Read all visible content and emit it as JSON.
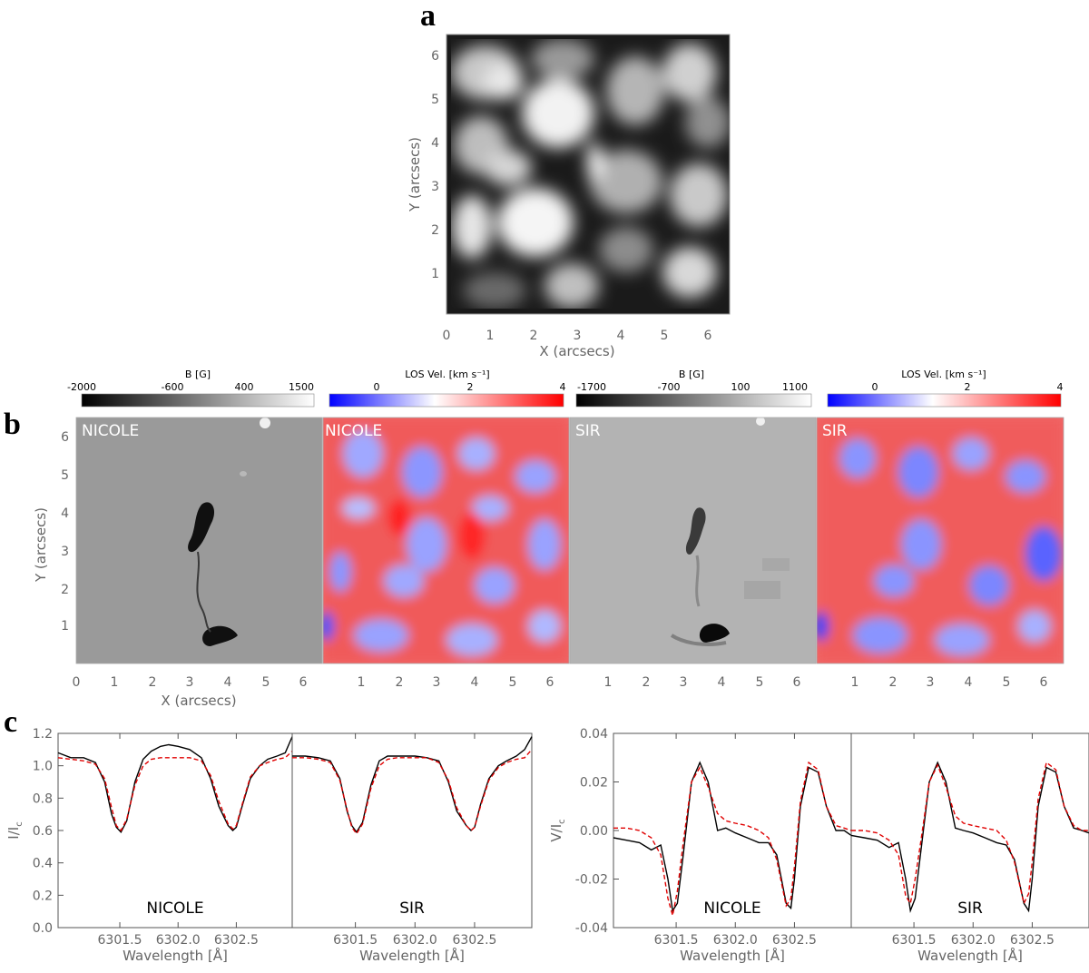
{
  "panel_labels": {
    "a": "a",
    "b": "b",
    "c": "c"
  },
  "panel_a": {
    "xlabel": "X (arcsecs)",
    "ylabel": "Y (arcsecs)",
    "xticks": [
      "0",
      "1",
      "2",
      "3",
      "4",
      "5",
      "6"
    ],
    "yticks": [
      "1",
      "2",
      "3",
      "4",
      "5",
      "6"
    ],
    "image": "continuum intensity granulation map"
  },
  "panel_b": {
    "xlabel": "X (arcsecs)",
    "ylabel": "Y (arcsecs)",
    "xticks_first": [
      "0",
      "1",
      "2",
      "3",
      "4",
      "5",
      "6"
    ],
    "xticks_other": [
      "1",
      "2",
      "3",
      "4",
      "5",
      "6"
    ],
    "yticks": [
      "1",
      "2",
      "3",
      "4",
      "5",
      "6"
    ],
    "maps": [
      {
        "tag": "NICOLE",
        "kind": "B",
        "colorbar": {
          "title": "B [G]",
          "ticks": [
            "-2000",
            "-600",
            "400",
            "1500"
          ],
          "range": [
            -2000,
            1500
          ],
          "colors": [
            "#000000",
            "#ffffff"
          ]
        }
      },
      {
        "tag": "NICOLE",
        "kind": "V",
        "colorbar": {
          "title": "LOS Vel. [km s⁻¹]",
          "ticks": [
            "0",
            "2",
            "4"
          ],
          "range": [
            -0.5,
            4
          ],
          "colors": [
            "#0000ff",
            "#ffffff",
            "#ff0000"
          ]
        }
      },
      {
        "tag": "SIR",
        "kind": "B",
        "colorbar": {
          "title": "B [G]",
          "ticks": [
            "-1700",
            "-700",
            "100",
            "1100"
          ],
          "range": [
            -1700,
            1100
          ],
          "colors": [
            "#000000",
            "#ffffff"
          ]
        }
      },
      {
        "tag": "SIR",
        "kind": "V",
        "colorbar": {
          "title": "LOS Vel. [km s⁻¹]",
          "ticks": [
            "0",
            "2",
            "4"
          ],
          "range": [
            -0.5,
            4
          ],
          "colors": [
            "#0000ff",
            "#ffffff",
            "#ff0000"
          ]
        }
      }
    ]
  },
  "chart_data": [
    {
      "type": "line",
      "title": "",
      "label": "NICOLE",
      "xlabel": "Wavelength [Å]",
      "ylabel": "I/I",
      "ylabel_sub": "c",
      "xticks": [
        6301.5,
        6302.0,
        6302.5
      ],
      "xlim": [
        6300.97,
        6302.98
      ],
      "ylim": [
        0.0,
        1.2
      ],
      "yticks": [
        0.0,
        0.2,
        0.4,
        0.6,
        0.8,
        1.0,
        1.2
      ],
      "x": [
        6300.97,
        6301.08,
        6301.19,
        6301.29,
        6301.37,
        6301.43,
        6301.47,
        6301.51,
        6301.56,
        6301.63,
        6301.7,
        6301.77,
        6301.85,
        6301.92,
        6302.0,
        6302.1,
        6302.2,
        6302.28,
        6302.35,
        6302.43,
        6302.47,
        6302.5,
        6302.55,
        6302.62,
        6302.7,
        6302.77,
        6302.85,
        6302.92,
        6302.98
      ],
      "series": [
        {
          "name": "",
          "color": "#000000",
          "dash": false,
          "values": [
            1.08,
            1.05,
            1.05,
            1.02,
            0.9,
            0.7,
            0.62,
            0.59,
            0.66,
            0.9,
            1.04,
            1.09,
            1.12,
            1.13,
            1.12,
            1.1,
            1.05,
            0.92,
            0.75,
            0.63,
            0.6,
            0.62,
            0.75,
            0.92,
            1.0,
            1.04,
            1.06,
            1.08,
            1.18
          ]
        },
        {
          "name": "",
          "color": "#e00000",
          "dash": true,
          "values": [
            1.05,
            1.04,
            1.03,
            1.01,
            0.92,
            0.74,
            0.63,
            0.6,
            0.67,
            0.88,
            1.0,
            1.04,
            1.05,
            1.05,
            1.05,
            1.05,
            1.03,
            0.94,
            0.78,
            0.64,
            0.61,
            0.63,
            0.76,
            0.93,
            1.0,
            1.02,
            1.04,
            1.05,
            1.09
          ]
        }
      ]
    },
    {
      "type": "line",
      "title": "",
      "label": "SIR",
      "xlabel": "Wavelength [Å]",
      "ylabel": "",
      "xticks": [
        6301.5,
        6302.0,
        6302.5
      ],
      "xlim": [
        6300.97,
        6302.98
      ],
      "ylim": [
        0.0,
        1.2
      ],
      "x": [
        6300.97,
        6301.08,
        6301.19,
        6301.29,
        6301.37,
        6301.43,
        6301.47,
        6301.51,
        6301.56,
        6301.63,
        6301.7,
        6301.77,
        6301.85,
        6301.92,
        6302.0,
        6302.1,
        6302.2,
        6302.28,
        6302.35,
        6302.43,
        6302.47,
        6302.5,
        6302.55,
        6302.62,
        6302.7,
        6302.77,
        6302.85,
        6302.92,
        6302.98
      ],
      "series": [
        {
          "name": "",
          "color": "#000000",
          "dash": false,
          "values": [
            1.06,
            1.06,
            1.05,
            1.03,
            0.92,
            0.72,
            0.63,
            0.59,
            0.65,
            0.88,
            1.03,
            1.06,
            1.06,
            1.06,
            1.06,
            1.05,
            1.03,
            0.9,
            0.72,
            0.63,
            0.6,
            0.62,
            0.76,
            0.92,
            1.0,
            1.03,
            1.06,
            1.1,
            1.18
          ]
        },
        {
          "name": "",
          "color": "#e00000",
          "dash": true,
          "values": [
            1.05,
            1.05,
            1.04,
            1.02,
            0.91,
            0.73,
            0.62,
            0.58,
            0.64,
            0.86,
            1.0,
            1.04,
            1.05,
            1.05,
            1.05,
            1.05,
            1.02,
            0.91,
            0.74,
            0.63,
            0.6,
            0.62,
            0.75,
            0.91,
            0.99,
            1.02,
            1.04,
            1.05,
            1.1
          ]
        }
      ]
    },
    {
      "type": "line",
      "title": "",
      "label": "NICOLE",
      "xlabel": "Wavelength [Å]",
      "ylabel": "V/I",
      "ylabel_sub": "c",
      "xticks": [
        6301.5,
        6302.0,
        6302.5
      ],
      "xlim": [
        6300.97,
        6302.98
      ],
      "ylim": [
        -0.04,
        0.04
      ],
      "yticks": [
        -0.04,
        -0.02,
        0.0,
        0.02,
        0.04
      ],
      "x": [
        6300.97,
        6301.08,
        6301.19,
        6301.29,
        6301.37,
        6301.43,
        6301.47,
        6301.51,
        6301.56,
        6301.63,
        6301.7,
        6301.77,
        6301.85,
        6301.92,
        6302.0,
        6302.1,
        6302.2,
        6302.28,
        6302.35,
        6302.43,
        6302.47,
        6302.5,
        6302.55,
        6302.62,
        6302.7,
        6302.77,
        6302.85,
        6302.92,
        6302.98
      ],
      "series": [
        {
          "name": "",
          "color": "#000000",
          "dash": false,
          "values": [
            -0.003,
            -0.004,
            -0.005,
            -0.008,
            -0.006,
            -0.02,
            -0.033,
            -0.03,
            -0.01,
            0.02,
            0.028,
            0.02,
            0.0,
            0.001,
            -0.001,
            -0.003,
            -0.005,
            -0.005,
            -0.01,
            -0.03,
            -0.032,
            -0.02,
            0.01,
            0.026,
            0.024,
            0.01,
            0.0,
            0.0,
            -0.002
          ]
        },
        {
          "name": "",
          "color": "#e00000",
          "dash": true,
          "values": [
            0.001,
            0.001,
            0.0,
            -0.003,
            -0.01,
            -0.028,
            -0.035,
            -0.025,
            -0.005,
            0.02,
            0.026,
            0.018,
            0.007,
            0.004,
            0.003,
            0.002,
            0.0,
            -0.003,
            -0.012,
            -0.031,
            -0.028,
            -0.015,
            0.012,
            0.028,
            0.025,
            0.01,
            0.002,
            0.001,
            0.0
          ]
        }
      ]
    },
    {
      "type": "line",
      "title": "",
      "label": "SIR",
      "xlabel": "Wavelength [Å]",
      "ylabel": "",
      "xticks": [
        6301.5,
        6302.0,
        6302.5
      ],
      "xlim": [
        6300.97,
        6302.98
      ],
      "ylim": [
        -0.04,
        0.04
      ],
      "x": [
        6300.97,
        6301.08,
        6301.19,
        6301.29,
        6301.37,
        6301.43,
        6301.47,
        6301.51,
        6301.56,
        6301.63,
        6301.7,
        6301.77,
        6301.85,
        6301.92,
        6302.0,
        6302.1,
        6302.2,
        6302.28,
        6302.35,
        6302.43,
        6302.47,
        6302.5,
        6302.55,
        6302.62,
        6302.7,
        6302.77,
        6302.85,
        6302.92,
        6302.98
      ],
      "series": [
        {
          "name": "",
          "color": "#000000",
          "dash": false,
          "values": [
            -0.002,
            -0.003,
            -0.004,
            -0.007,
            -0.005,
            -0.02,
            -0.033,
            -0.028,
            -0.008,
            0.02,
            0.028,
            0.02,
            0.001,
            0.0,
            -0.001,
            -0.003,
            -0.005,
            -0.006,
            -0.012,
            -0.03,
            -0.033,
            -0.02,
            0.01,
            0.026,
            0.024,
            0.01,
            0.001,
            0.0,
            -0.001
          ]
        },
        {
          "name": "",
          "color": "#e00000",
          "dash": true,
          "values": [
            0.0,
            0.0,
            -0.001,
            -0.004,
            -0.01,
            -0.027,
            -0.03,
            -0.02,
            -0.004,
            0.02,
            0.027,
            0.018,
            0.006,
            0.003,
            0.002,
            0.001,
            0.0,
            -0.004,
            -0.013,
            -0.03,
            -0.026,
            -0.013,
            0.013,
            0.028,
            0.025,
            0.01,
            0.002,
            0.0,
            0.0
          ]
        }
      ]
    }
  ]
}
